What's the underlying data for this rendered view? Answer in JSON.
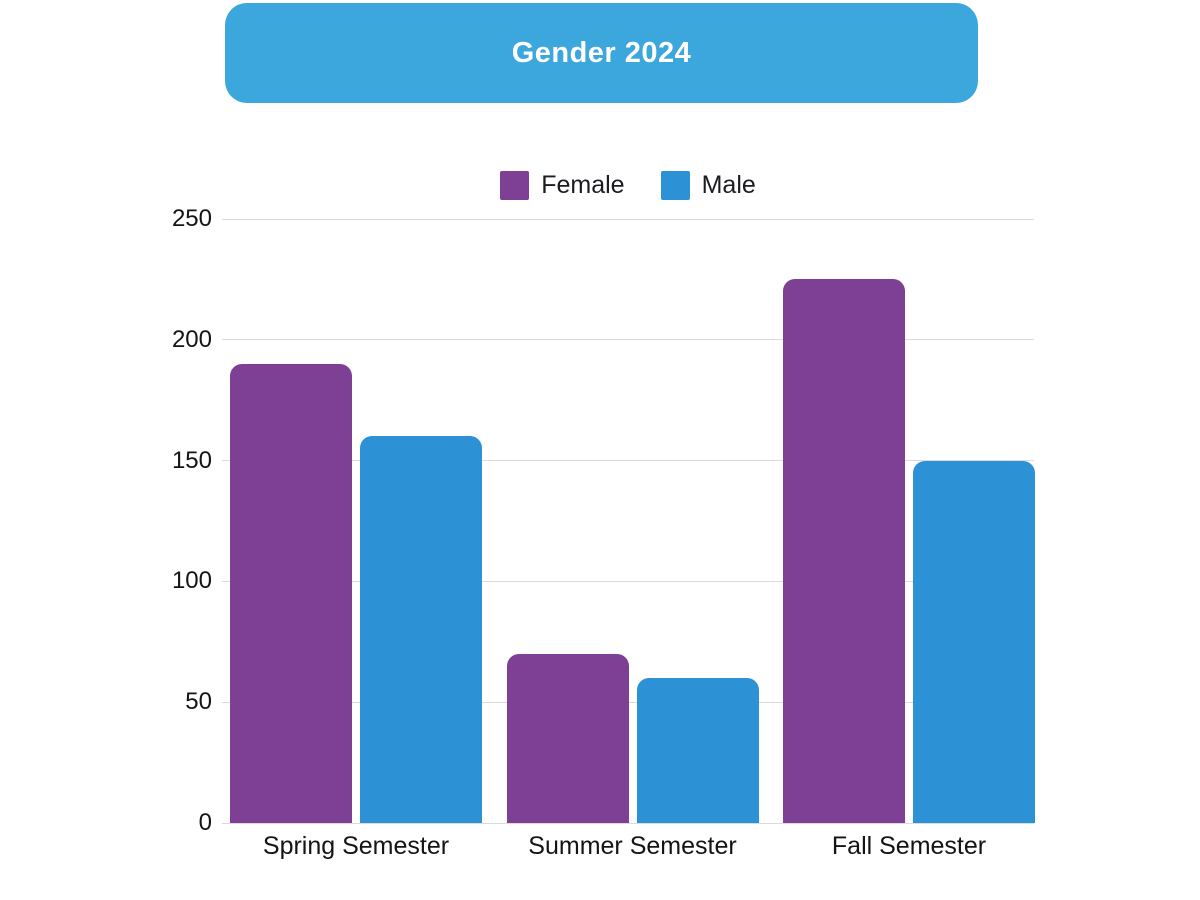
{
  "title": "Gender 2024",
  "colors": {
    "header_bg": "#3BA7DC",
    "title_text": "#FFFFFF",
    "grid": "#DBDBDB",
    "axis_text": "#141418"
  },
  "chart_data": {
    "type": "bar",
    "title": "Gender 2024",
    "categories": [
      "Spring Semester",
      "Summer Semester",
      "Fall Semester"
    ],
    "series": [
      {
        "name": "Female",
        "color": "#7E4095",
        "values": [
          190,
          70,
          225
        ]
      },
      {
        "name": "Male",
        "color": "#2D91D5",
        "values": [
          160,
          60,
          150
        ]
      }
    ],
    "yticks": [
      0,
      50,
      100,
      150,
      200,
      250
    ],
    "ylim": [
      0,
      250
    ],
    "xlabel": "",
    "ylabel": "",
    "grid": true,
    "legend_position": "top-center"
  }
}
